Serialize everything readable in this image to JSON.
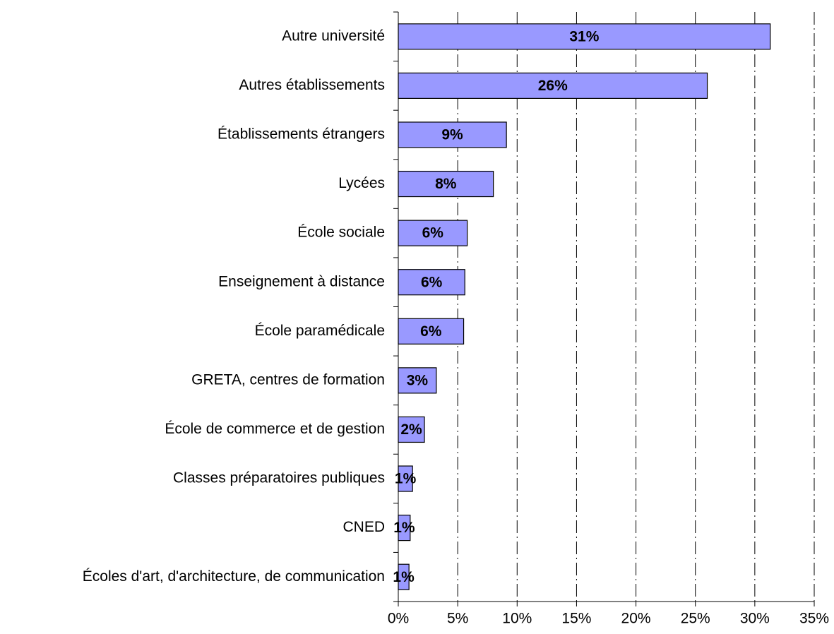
{
  "chart_data": {
    "type": "barh",
    "categories": [
      "Autre université",
      "Autres établissements",
      "Établissements étrangers",
      "Lycées",
      "École sociale",
      "Enseignement à distance",
      "École paramédicale",
      "GRETA, centres de formation",
      "École de commerce et de gestion",
      "Classes préparatoires publiques",
      "CNED",
      "Écoles d'art, d'architecture, de communication"
    ],
    "values": [
      31.3,
      26.0,
      9.1,
      8.0,
      5.8,
      5.6,
      5.5,
      3.2,
      2.2,
      1.2,
      1.0,
      0.9
    ],
    "value_labels": [
      "31%",
      "26%",
      "9%",
      "8%",
      "6%",
      "6%",
      "6%",
      "3%",
      "2%",
      "1%",
      "1%",
      "1%"
    ],
    "color": "#9999ff",
    "xlim": [
      0,
      35
    ],
    "xticks": [
      {
        "value": 0,
        "label": "0%"
      },
      {
        "value": 5,
        "label": "5%"
      },
      {
        "value": 10,
        "label": "10%"
      },
      {
        "value": 15,
        "label": "15%"
      },
      {
        "value": 20,
        "label": "20%"
      },
      {
        "value": 25,
        "label": "25%"
      },
      {
        "value": 30,
        "label": "30%"
      },
      {
        "value": 35,
        "label": "35%"
      }
    ],
    "grid": true
  }
}
